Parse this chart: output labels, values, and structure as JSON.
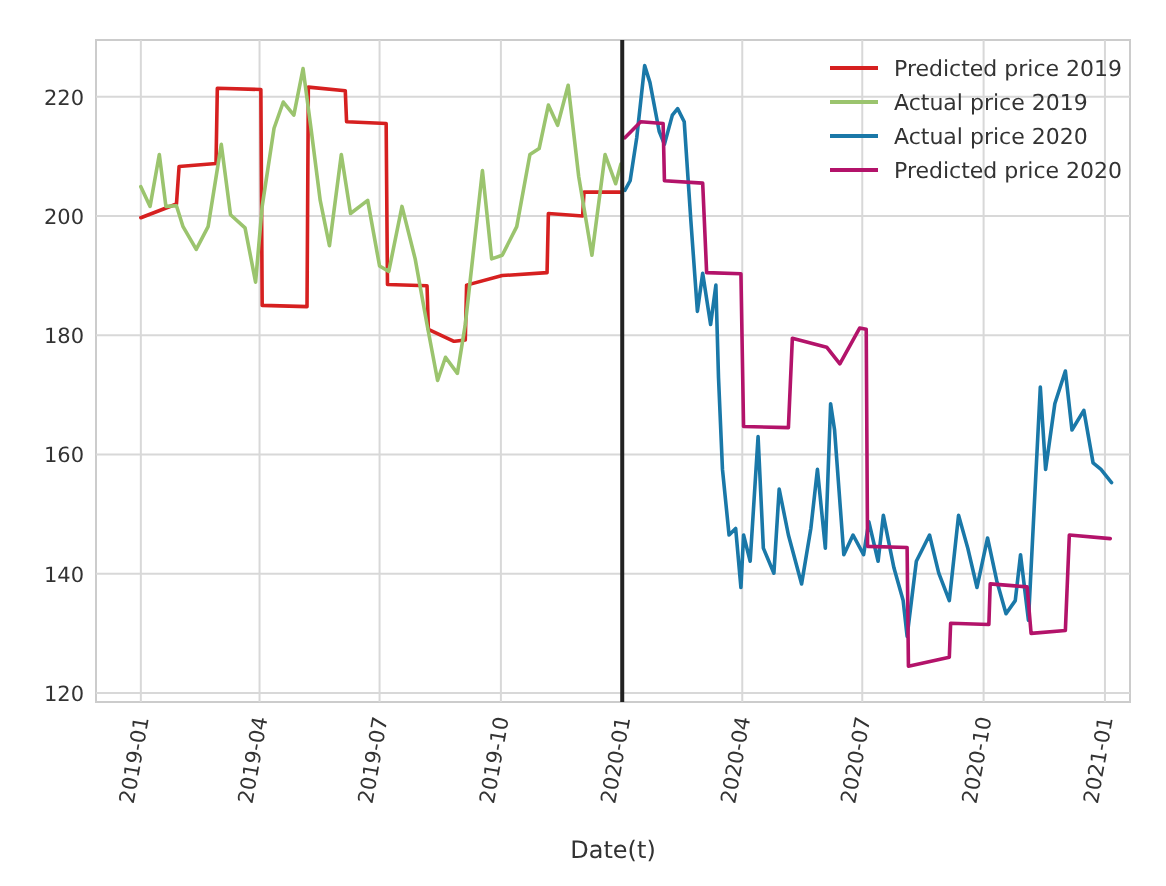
{
  "chart_data": {
    "type": "line",
    "xlabel": "Date(t)",
    "xlim": [
      "2018-11-28",
      "2021-01-20"
    ],
    "ylim": [
      118.5,
      229.5
    ],
    "xticks": [
      {
        "value": "2019-01-01",
        "label": "2019-01"
      },
      {
        "value": "2019-04-01",
        "label": "2019-04"
      },
      {
        "value": "2019-07-01",
        "label": "2019-07"
      },
      {
        "value": "2019-10-01",
        "label": "2019-10"
      },
      {
        "value": "2020-01-01",
        "label": "2020-01"
      },
      {
        "value": "2020-04-01",
        "label": "2020-04"
      },
      {
        "value": "2020-07-01",
        "label": "2020-07"
      },
      {
        "value": "2020-10-01",
        "label": "2020-10"
      },
      {
        "value": "2021-01-01",
        "label": "2021-01"
      }
    ],
    "yticks": [
      120,
      140,
      160,
      180,
      200,
      220
    ],
    "grid": true,
    "legend": "top right",
    "line_style": "solid",
    "marker": "none",
    "ref_lines": [
      {
        "axis": "x",
        "value": "2020-01-01",
        "color": "#222222"
      }
    ],
    "series": [
      {
        "name": "Predicted price 2019",
        "color": "#d62020",
        "x": [
          "2019-01-01",
          "2019-01-28",
          "2019-01-30",
          "2019-02-27",
          "2019-02-28",
          "2019-04-02",
          "2019-04-03",
          "2019-05-07",
          "2019-05-08",
          "2019-06-05",
          "2019-06-06",
          "2019-07-06",
          "2019-07-07",
          "2019-08-06",
          "2019-08-07",
          "2019-08-26",
          "2019-08-27",
          "2019-09-04",
          "2019-09-05",
          "2019-10-02",
          "2019-11-05",
          "2019-11-06",
          "2019-12-02",
          "2019-12-03",
          "2019-12-31"
        ],
        "values": [
          199.7,
          202,
          208.3,
          208.8,
          221.4,
          221.2,
          185,
          184.8,
          221.6,
          221,
          215.8,
          215.5,
          188.5,
          188.3,
          181,
          179,
          179,
          179.2,
          188.4,
          190,
          190.5,
          200.4,
          200,
          204,
          204
        ]
      },
      {
        "name": "Actual price 2019",
        "color": "#9bc46e",
        "x": [
          "2019-01-01",
          "2019-01-08",
          "2019-01-15",
          "2019-01-20",
          "2019-01-28",
          "2019-02-02",
          "2019-02-12",
          "2019-02-21",
          "2019-03-03",
          "2019-03-10",
          "2019-03-21",
          "2019-03-29",
          "2019-04-03",
          "2019-04-12",
          "2019-04-19",
          "2019-04-27",
          "2019-05-04",
          "2019-05-10",
          "2019-05-17",
          "2019-05-24",
          "2019-06-02",
          "2019-06-09",
          "2019-06-22",
          "2019-07-01",
          "2019-07-08",
          "2019-07-18",
          "2019-07-28",
          "2019-08-06",
          "2019-08-14",
          "2019-08-20",
          "2019-08-29",
          "2019-09-04",
          "2019-09-17",
          "2019-09-24",
          "2019-10-02",
          "2019-10-13",
          "2019-10-23",
          "2019-10-30",
          "2019-11-06",
          "2019-11-13",
          "2019-11-21",
          "2019-11-29",
          "2019-12-09",
          "2019-12-19",
          "2019-12-27",
          "2019-12-31"
        ],
        "values": [
          204.9,
          201.6,
          210.3,
          201.6,
          201.7,
          198.2,
          194.4,
          198.2,
          212,
          200.2,
          198,
          188.9,
          201.6,
          214.7,
          219.1,
          216.9,
          224.7,
          214.7,
          202.6,
          195,
          210.3,
          200.4,
          202.6,
          191.6,
          190.7,
          201.6,
          192.8,
          181.8,
          172.4,
          176.3,
          173.6,
          181.8,
          207.6,
          192.8,
          193.4,
          198.2,
          210.3,
          211.3,
          218.6,
          215.2,
          221.9,
          206.6,
          193.4,
          210.3,
          205.4,
          208.7
        ]
      },
      {
        "name": "Actual price 2020",
        "color": "#1a78a8",
        "x": [
          "2020-01-03",
          "2020-01-07",
          "2020-01-12",
          "2020-01-18",
          "2020-01-22",
          "2020-01-29",
          "2020-02-02",
          "2020-02-08",
          "2020-02-12",
          "2020-02-17",
          "2020-02-22",
          "2020-02-27",
          "2020-03-02",
          "2020-03-08",
          "2020-03-12",
          "2020-03-14",
          "2020-03-17",
          "2020-03-22",
          "2020-03-27",
          "2020-03-31",
          "2020-04-02",
          "2020-04-07",
          "2020-04-13",
          "2020-04-17",
          "2020-04-25",
          "2020-04-29",
          "2020-05-06",
          "2020-05-16",
          "2020-05-23",
          "2020-05-28",
          "2020-06-03",
          "2020-06-07",
          "2020-06-10",
          "2020-06-17",
          "2020-06-24",
          "2020-07-02",
          "2020-07-06",
          "2020-07-13",
          "2020-07-17",
          "2020-07-25",
          "2020-08-01",
          "2020-08-04",
          "2020-08-11",
          "2020-08-21",
          "2020-08-28",
          "2020-09-05",
          "2020-09-12",
          "2020-09-19",
          "2020-09-26",
          "2020-10-04",
          "2020-10-11",
          "2020-10-18",
          "2020-10-25",
          "2020-10-29",
          "2020-11-04",
          "2020-11-13",
          "2020-11-17",
          "2020-11-24",
          "2020-12-02",
          "2020-12-07",
          "2020-12-16",
          "2020-12-23",
          "2020-12-29",
          "2021-01-06"
        ],
        "values": [
          204.3,
          205.9,
          213.1,
          225.2,
          222.4,
          214.2,
          212,
          216.9,
          218,
          215.8,
          199.3,
          184,
          190.4,
          181.8,
          188.4,
          172.9,
          157.5,
          146.5,
          147.6,
          137.7,
          146.5,
          142.1,
          163,
          144.3,
          140.1,
          154.2,
          146.5,
          138.3,
          147.6,
          157.5,
          144.3,
          168.5,
          164.1,
          143.2,
          146.5,
          143.2,
          148.7,
          142.1,
          149.8,
          141,
          135.5,
          129.5,
          142.1,
          146.5,
          140.1,
          135.5,
          149.8,
          144.3,
          137.7,
          146,
          138.8,
          133.3,
          135.5,
          143.2,
          132.2,
          171.3,
          157.5,
          168.5,
          174,
          164.1,
          167.4,
          158.6,
          157.5,
          155.3
        ]
      },
      {
        "name": "Predicted price 2020",
        "color": "#b3136a",
        "x": [
          "2020-01-03",
          "2020-01-15",
          "2020-02-01",
          "2020-02-02",
          "2020-03-02",
          "2020-03-05",
          "2020-03-31",
          "2020-04-02",
          "2020-05-06",
          "2020-05-09",
          "2020-06-04",
          "2020-06-14",
          "2020-06-29",
          "2020-07-04",
          "2020-07-05",
          "2020-08-04",
          "2020-08-05",
          "2020-09-05",
          "2020-09-06",
          "2020-10-05",
          "2020-10-06",
          "2020-11-03",
          "2020-11-06",
          "2020-12-02",
          "2020-12-05",
          "2021-01-05"
        ],
        "values": [
          213.1,
          215.8,
          215.5,
          205.9,
          205.5,
          190.5,
          190.3,
          164.7,
          164.5,
          179.5,
          178,
          175.2,
          181.2,
          181,
          144.6,
          144.4,
          124.5,
          126,
          131.7,
          131.5,
          138.3,
          137.8,
          130,
          130.5,
          146.5,
          145.9
        ]
      }
    ]
  }
}
